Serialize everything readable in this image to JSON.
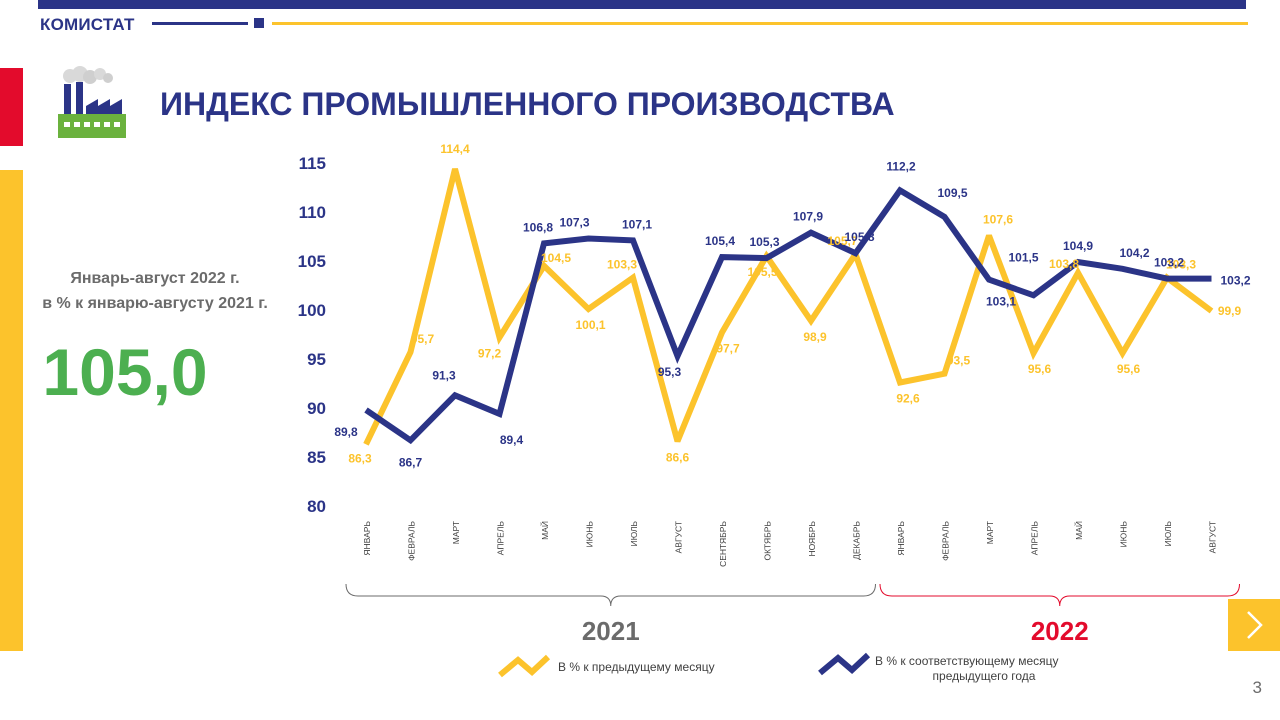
{
  "header": {
    "brand": "КОМИСТАТ"
  },
  "page": {
    "title": "ИНДЕКС ПРОМЫШЛЕННОГО ПРОИЗВОДСТВА",
    "page_number": "3"
  },
  "kpi": {
    "caption_line1": "Январь-август 2022 г.",
    "caption_line2": "в % к январю-августу 2021 г.",
    "value": "105,0"
  },
  "colors": {
    "navy": "#2b3487",
    "yellow": "#fcc32c",
    "red": "#e30b2c",
    "green": "#4caf50",
    "gray": "#6b6b6b"
  },
  "icons": {
    "factory": "factory-icon",
    "next": "chevron-right-icon"
  },
  "chart_data": {
    "type": "line",
    "categories": [
      "ЯНВАРЬ",
      "ФЕВРАЛЬ",
      "МАРТ",
      "АПРЕЛЬ",
      "МАЙ",
      "ИЮНЬ",
      "ИЮЛЬ",
      "АВГУСТ",
      "СЕНТЯБРЬ",
      "ОКТЯБРЬ",
      "НОЯБРЬ",
      "ДЕКАБРЬ",
      "ЯНВАРЬ",
      "ФЕВРАЛЬ",
      "МАРТ",
      "АПРЕЛЬ",
      "МАЙ",
      "ИЮНЬ",
      "ИЮЛЬ",
      "АВГУСТ"
    ],
    "ylim": [
      80,
      115
    ],
    "yticks": [
      "80",
      "85",
      "90",
      "95",
      "100",
      "105",
      "110",
      "115"
    ],
    "groups": [
      {
        "label": "2021",
        "from": 0,
        "to": 11,
        "color": "#6b6b6b"
      },
      {
        "label": "2022",
        "from": 12,
        "to": 19,
        "color": "#e30b2c"
      }
    ],
    "series": [
      {
        "name": "В % к предыдущему месяцу",
        "color": "#fcc32c",
        "values": [
          86.3,
          95.7,
          114.4,
          97.2,
          104.5,
          100.1,
          103.3,
          86.6,
          97.7,
          105.5,
          98.9,
          105.7,
          92.6,
          93.5,
          107.6,
          95.6,
          103.8,
          95.6,
          103.3,
          99.9
        ],
        "labels": [
          "86,3",
          "95,7",
          "114,4",
          "97,2",
          "104,5",
          "100,1",
          "103,3",
          "86,6",
          "97,7",
          "105,5",
          "98,9",
          "105,7",
          "92,6",
          "93,5",
          "107,6",
          "95,6",
          "103,8",
          "95,6",
          "103,3",
          "99,9"
        ]
      },
      {
        "name": "В % к соответствующему месяцу предыдущего года",
        "color": "#2b3487",
        "values": [
          89.8,
          86.7,
          91.3,
          89.4,
          106.8,
          107.3,
          107.1,
          95.3,
          105.4,
          105.3,
          107.9,
          105.8,
          112.2,
          109.5,
          103.1,
          101.5,
          104.9,
          104.2,
          103.2,
          103.2
        ],
        "labels": [
          "89,8",
          "86,7",
          "91,3",
          "89,4",
          "106,8",
          "107,3",
          "107,1",
          "95,3",
          "105,4",
          "105,3",
          "107,9",
          "105,8",
          "112,2",
          "109,5",
          "103,1",
          "101,5",
          "104,9",
          "104,2",
          "103,2",
          "103,2"
        ]
      }
    ],
    "legend": [
      {
        "text": "В %  к предыдущему  месяцу",
        "color": "#fcc32c"
      },
      {
        "text_line1": "В %  к соответствующему  месяцу",
        "text_line2": "предыдущего  года",
        "color": "#2b3487"
      }
    ]
  }
}
